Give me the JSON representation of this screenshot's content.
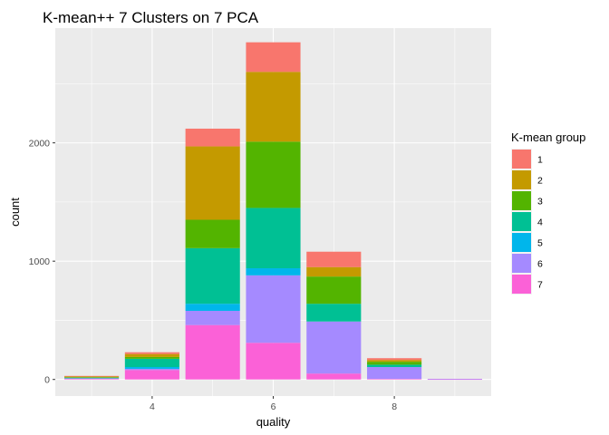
{
  "chart_data": {
    "type": "bar",
    "stacked": true,
    "title": "K-mean++ 7 Clusters on 7 PCA",
    "xlabel": "quality",
    "ylabel": "count",
    "categories": [
      3,
      4,
      5,
      6,
      7,
      8,
      9
    ],
    "x_ticks": [
      4,
      6,
      8
    ],
    "y_ticks": [
      0,
      1000,
      2000
    ],
    "xlim": [
      2.4,
      9.6
    ],
    "ylim": [
      -140,
      2970
    ],
    "legend_title": "K-mean group",
    "legend_position": "right",
    "grid": true,
    "series": [
      {
        "name": "1",
        "color": "#F8766D",
        "values": [
          5,
          15,
          150,
          250,
          130,
          15,
          0
        ]
      },
      {
        "name": "2",
        "color": "#C49A00",
        "values": [
          5,
          25,
          620,
          590,
          80,
          15,
          0
        ]
      },
      {
        "name": "3",
        "color": "#53B400",
        "values": [
          5,
          15,
          240,
          560,
          230,
          25,
          0
        ]
      },
      {
        "name": "4",
        "color": "#00C094",
        "values": [
          5,
          70,
          470,
          510,
          150,
          20,
          0
        ]
      },
      {
        "name": "5",
        "color": "#00B6EB",
        "values": [
          0,
          15,
          60,
          60,
          0,
          0,
          0
        ]
      },
      {
        "name": "6",
        "color": "#A58AFF",
        "values": [
          5,
          10,
          120,
          570,
          440,
          100,
          3
        ]
      },
      {
        "name": "7",
        "color": "#FB61D7",
        "values": [
          5,
          80,
          460,
          310,
          50,
          5,
          2
        ]
      }
    ]
  }
}
